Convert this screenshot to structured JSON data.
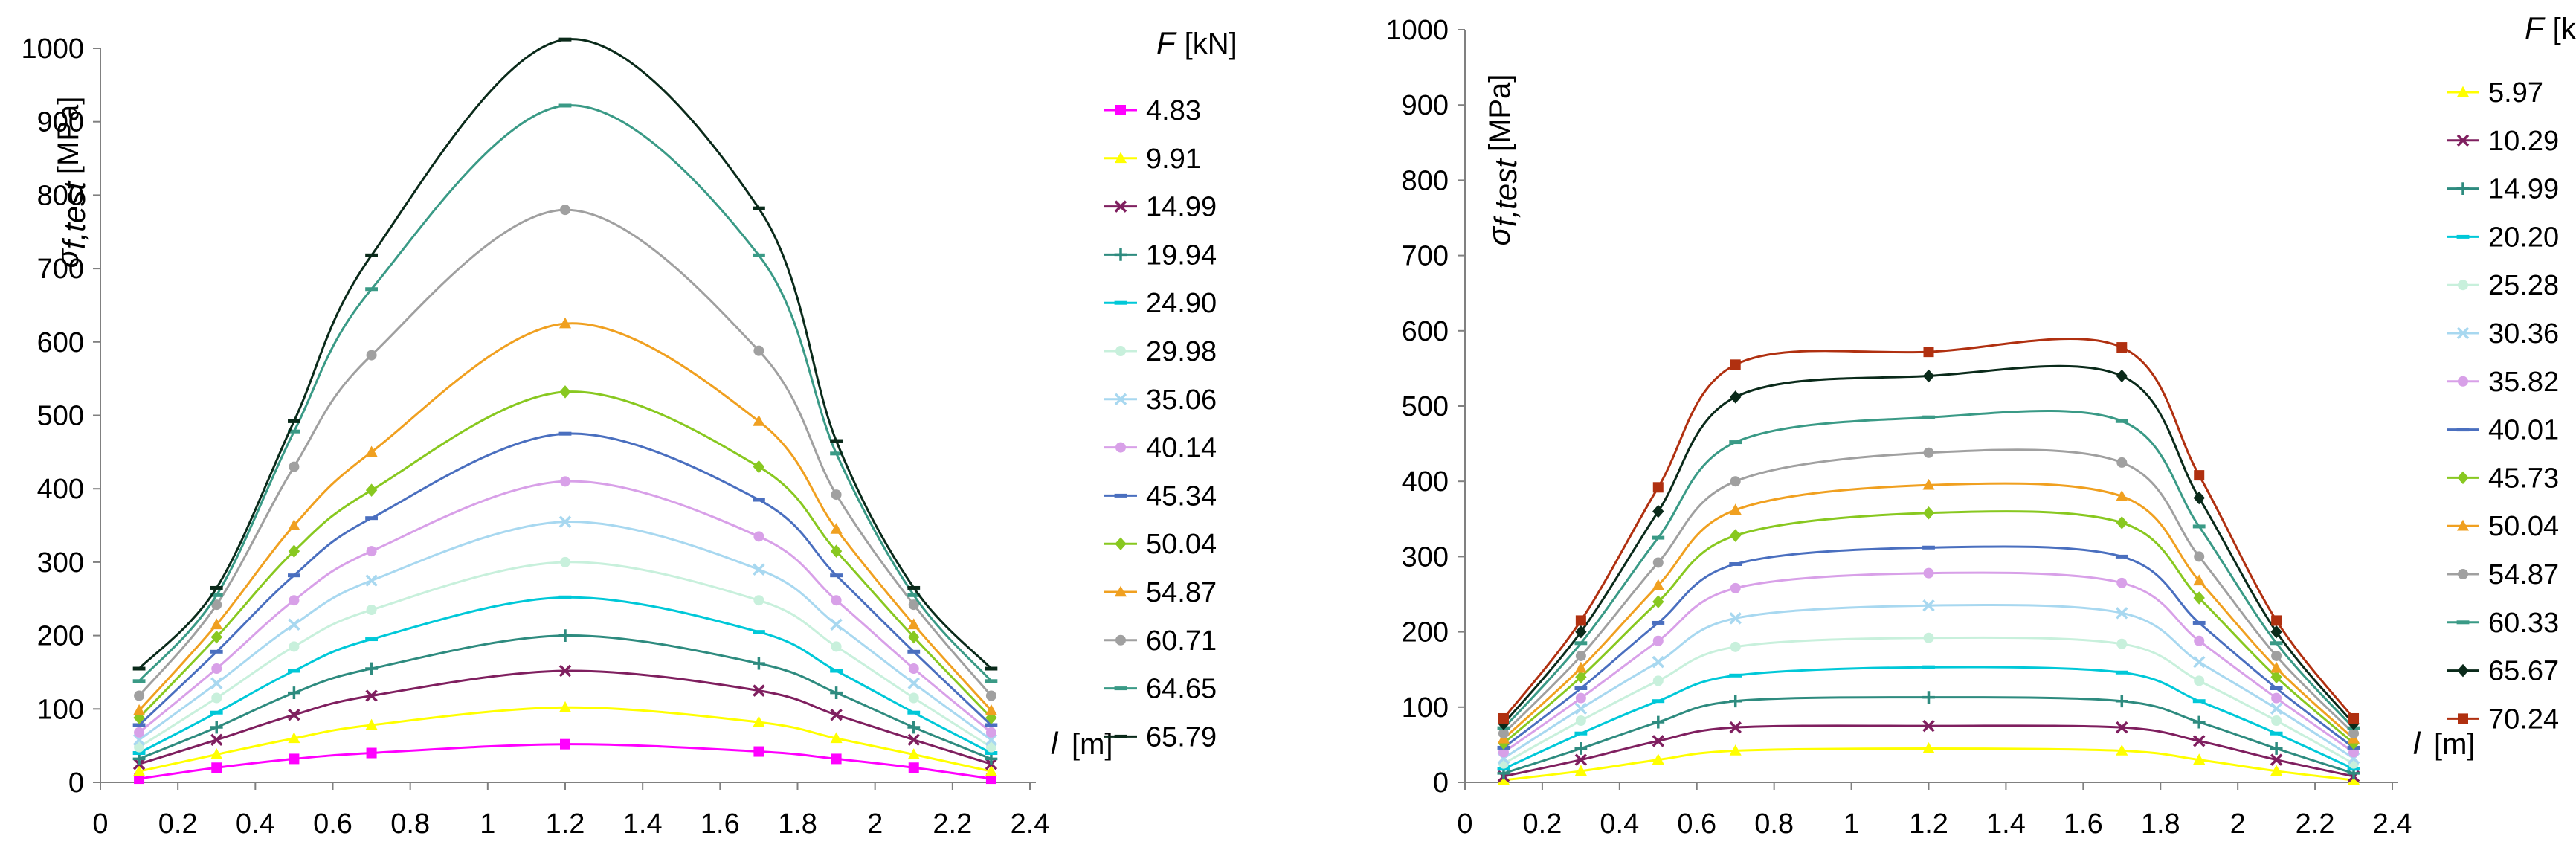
{
  "figure": {
    "x_tick_labels": [
      "0",
      "0.2",
      "0.4",
      "0.6",
      "0.8",
      "1",
      "1.2",
      "1.4",
      "1.6",
      "1.8",
      "2",
      "2.2",
      "2.4"
    ],
    "y_tick_labels": [
      "0",
      "100",
      "200",
      "300",
      "400",
      "500",
      "600",
      "700",
      "800",
      "900",
      "1000"
    ]
  },
  "chart_data": [
    {
      "type": "line",
      "title": "",
      "xlabel_var": "l",
      "xlabel_unit": "[m]",
      "ylabel_var": "σ",
      "ylabel_sub": "f,test",
      "ylabel_unit": "[MPa]",
      "legend_title_var": "F",
      "legend_title_unit": "[kN]",
      "legend_position": "right",
      "xlim": [
        0,
        2.4
      ],
      "ylim": [
        0,
        1000
      ],
      "x": [
        0.1,
        0.3,
        0.5,
        0.7,
        1.2,
        1.7,
        1.9,
        2.1,
        2.3
      ],
      "series": [
        {
          "name": "4.83",
          "color": "#ff00ff",
          "marker": "square",
          "values": [
            5,
            20,
            32,
            40,
            52,
            42,
            32,
            20,
            5
          ]
        },
        {
          "name": "9.91",
          "color": "#ffff00",
          "marker": "triangle",
          "values": [
            15,
            38,
            60,
            78,
            102,
            82,
            60,
            38,
            15
          ]
        },
        {
          "name": "14.99",
          "color": "#7f1f5f",
          "marker": "x",
          "values": [
            25,
            58,
            92,
            118,
            152,
            125,
            92,
            58,
            25
          ]
        },
        {
          "name": "19.94",
          "color": "#2e8b7f",
          "marker": "plus",
          "values": [
            32,
            75,
            122,
            155,
            200,
            162,
            122,
            75,
            32
          ]
        },
        {
          "name": "24.90",
          "color": "#00c8d8",
          "marker": "dash",
          "values": [
            40,
            95,
            152,
            195,
            252,
            205,
            152,
            95,
            40
          ]
        },
        {
          "name": "29.98",
          "color": "#c8f0dc",
          "marker": "circle",
          "values": [
            48,
            115,
            185,
            235,
            300,
            248,
            185,
            115,
            48
          ]
        },
        {
          "name": "35.06",
          "color": "#a8d8f0",
          "marker": "x",
          "values": [
            58,
            135,
            215,
            275,
            355,
            290,
            215,
            135,
            58
          ]
        },
        {
          "name": "40.14",
          "color": "#d8a0e8",
          "marker": "circle",
          "values": [
            68,
            155,
            248,
            315,
            410,
            335,
            248,
            155,
            68
          ]
        },
        {
          "name": "45.34",
          "color": "#4a6fbf",
          "marker": "dash",
          "values": [
            78,
            178,
            282,
            360,
            475,
            385,
            282,
            178,
            78
          ]
        },
        {
          "name": "50.04",
          "color": "#88c820",
          "marker": "diamond",
          "values": [
            88,
            198,
            315,
            398,
            532,
            430,
            315,
            198,
            88
          ]
        },
        {
          "name": "54.87",
          "color": "#f0a020",
          "marker": "triangle",
          "values": [
            98,
            215,
            350,
            450,
            625,
            492,
            345,
            215,
            98
          ]
        },
        {
          "name": "60.71",
          "color": "#a0a0a0",
          "marker": "circle",
          "values": [
            118,
            242,
            430,
            582,
            780,
            588,
            392,
            242,
            118
          ]
        },
        {
          "name": "64.65",
          "color": "#3a9a86",
          "marker": "dash",
          "values": [
            138,
            255,
            478,
            672,
            922,
            718,
            448,
            255,
            138
          ]
        },
        {
          "name": "65.79",
          "color": "#0a2a1a",
          "marker": "dash",
          "values": [
            155,
            265,
            492,
            718,
            1012,
            782,
            465,
            265,
            155
          ]
        }
      ]
    },
    {
      "type": "line",
      "title": "",
      "xlabel_var": "l",
      "xlabel_unit": "[m]",
      "ylabel_var": "σ",
      "ylabel_sub": "f,test",
      "ylabel_unit": "[MPa]",
      "legend_title_var": "F",
      "legend_title_unit": "[kN]",
      "legend_position": "right",
      "xlim": [
        0,
        2.4
      ],
      "ylim": [
        0,
        1000
      ],
      "x": [
        0.1,
        0.3,
        0.5,
        0.7,
        1.2,
        1.7,
        1.9,
        2.1,
        2.3
      ],
      "series": [
        {
          "name": "5.97",
          "color": "#ffff00",
          "marker": "triangle",
          "values": [
            3,
            15,
            30,
            42,
            45,
            42,
            30,
            15,
            3
          ]
        },
        {
          "name": "10.29",
          "color": "#7f1f5f",
          "marker": "x",
          "values": [
            8,
            30,
            55,
            73,
            75,
            73,
            55,
            30,
            8
          ]
        },
        {
          "name": "14.99",
          "color": "#2e8b7f",
          "marker": "plus",
          "values": [
            12,
            45,
            80,
            108,
            113,
            108,
            80,
            45,
            12
          ]
        },
        {
          "name": "20.20",
          "color": "#00c8d8",
          "marker": "dash",
          "values": [
            18,
            65,
            108,
            142,
            153,
            146,
            108,
            65,
            18
          ]
        },
        {
          "name": "25.28",
          "color": "#c8f0dc",
          "marker": "circle",
          "values": [
            25,
            82,
            135,
            180,
            192,
            184,
            135,
            82,
            25
          ]
        },
        {
          "name": "30.36",
          "color": "#a8d8f0",
          "marker": "x",
          "values": [
            32,
            98,
            160,
            218,
            235,
            225,
            160,
            98,
            32
          ]
        },
        {
          "name": "35.82",
          "color": "#d8a0e8",
          "marker": "circle",
          "values": [
            40,
            112,
            188,
            258,
            278,
            265,
            188,
            112,
            40
          ]
        },
        {
          "name": "40.01",
          "color": "#4a6fbf",
          "marker": "dash",
          "values": [
            46,
            125,
            212,
            290,
            312,
            300,
            212,
            125,
            46
          ]
        },
        {
          "name": "45.73",
          "color": "#88c820",
          "marker": "diamond",
          "values": [
            52,
            140,
            240,
            328,
            358,
            345,
            245,
            140,
            52
          ]
        },
        {
          "name": "50.04",
          "color": "#f0a020",
          "marker": "triangle",
          "values": [
            58,
            152,
            262,
            362,
            395,
            380,
            268,
            152,
            58
          ]
        },
        {
          "name": "54.87",
          "color": "#a0a0a0",
          "marker": "circle",
          "values": [
            65,
            168,
            292,
            400,
            438,
            425,
            300,
            168,
            65
          ]
        },
        {
          "name": "60.33",
          "color": "#3a9a86",
          "marker": "dash",
          "values": [
            72,
            185,
            325,
            452,
            485,
            480,
            340,
            185,
            72
          ]
        },
        {
          "name": "65.67",
          "color": "#0a2a1a",
          "marker": "diamond",
          "values": [
            78,
            200,
            360,
            512,
            540,
            540,
            378,
            200,
            78
          ]
        },
        {
          "name": "70.24",
          "color": "#b03010",
          "marker": "square",
          "values": [
            85,
            215,
            392,
            555,
            572,
            578,
            408,
            215,
            85
          ]
        }
      ]
    }
  ]
}
